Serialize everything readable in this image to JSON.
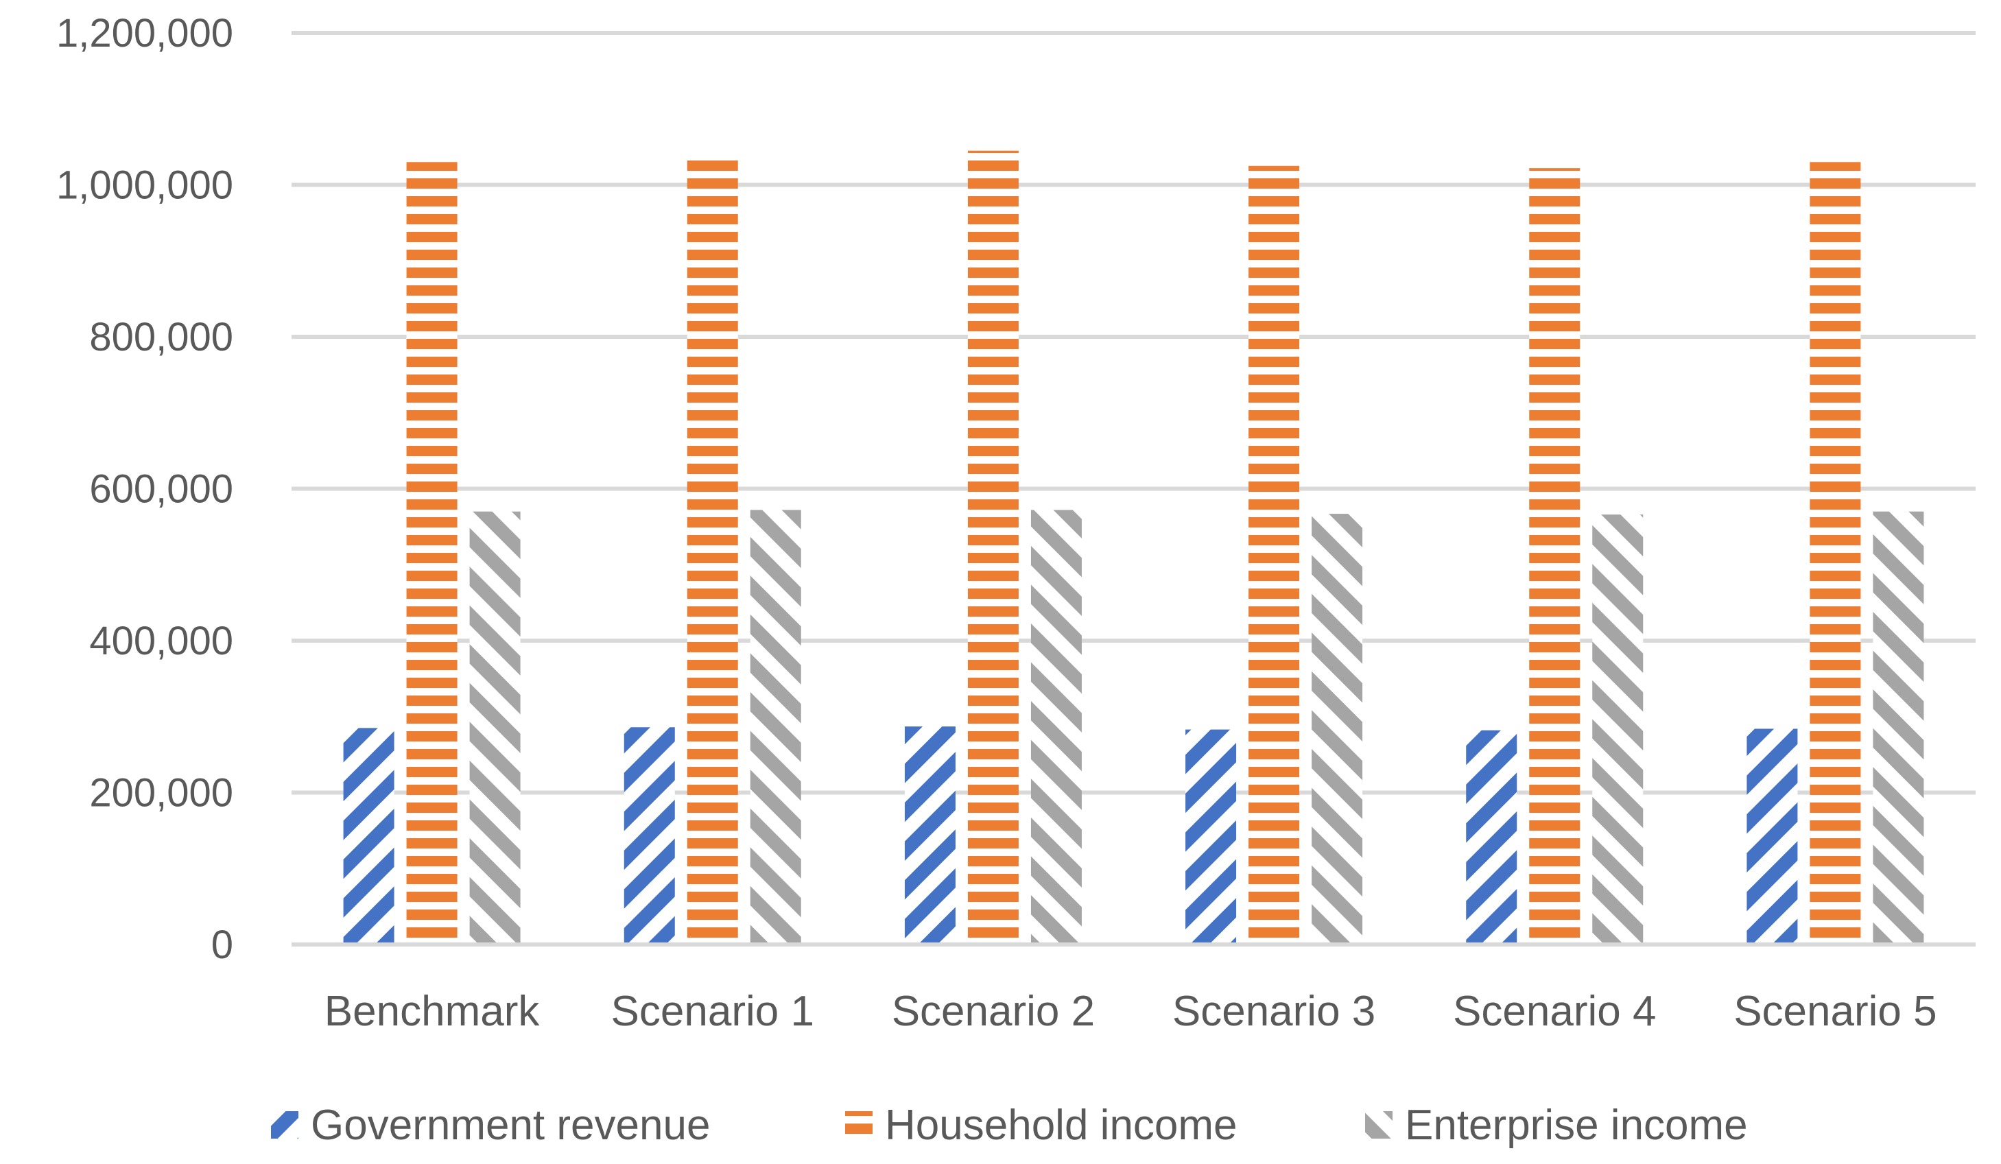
{
  "chart_data": {
    "type": "bar",
    "title": "",
    "xlabel": "",
    "ylabel": "",
    "categories": [
      "Benchmark",
      "Scenario 1",
      "Scenario 2",
      "Scenario 3",
      "Scenario 4",
      "Scenario 5"
    ],
    "series": [
      {
        "name": "Government revenue",
        "color": "#4472c4",
        "pattern": "diagonal-up",
        "values": [
          285000,
          286000,
          287000,
          283000,
          282000,
          284000
        ]
      },
      {
        "name": "Household income",
        "color": "#ed7d31",
        "pattern": "horizontal",
        "values": [
          1030000,
          1040000,
          1045000,
          1025000,
          1022000,
          1030000
        ]
      },
      {
        "name": "Enterprise income",
        "color": "#a5a5a5",
        "pattern": "diagonal-down",
        "values": [
          570000,
          572000,
          572000,
          567000,
          566000,
          570000
        ]
      }
    ],
    "ylim": [
      0,
      1200000
    ],
    "yticks": [
      0,
      200000,
      400000,
      600000,
      800000,
      1000000,
      1200000
    ],
    "ytick_labels": [
      "0",
      "200,000",
      "400,000",
      "600,000",
      "800,000",
      "1,000,000",
      "1,200,000"
    ],
    "grid": true,
    "legend_position": "bottom"
  }
}
